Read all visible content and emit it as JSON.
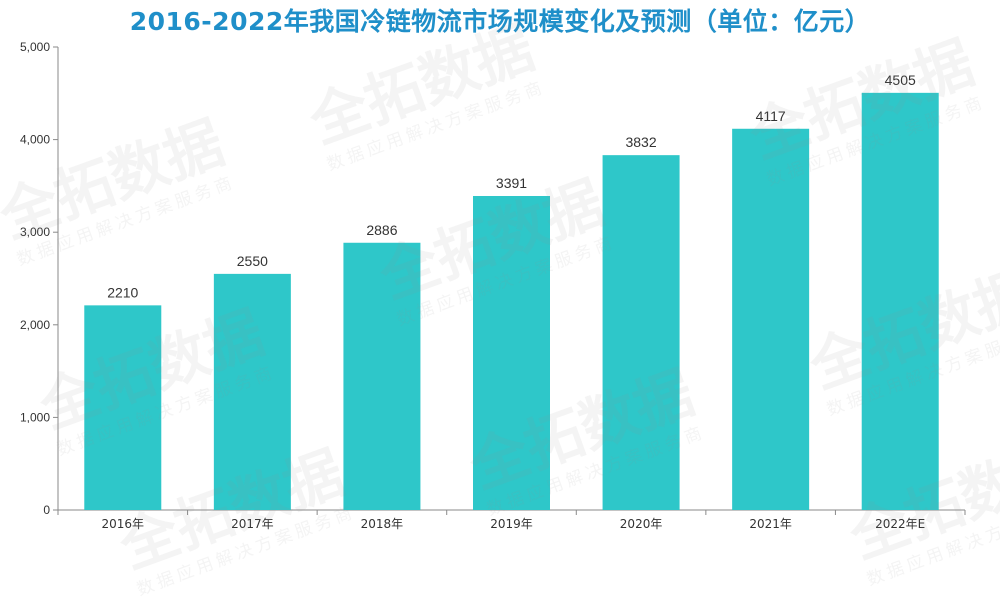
{
  "chart_data": {
    "type": "bar",
    "title": "2016-2022年我国冷链物流市场规模变化及预测（单位：亿元）",
    "categories": [
      "2016年",
      "2017年",
      "2018年",
      "2019年",
      "2020年",
      "2021年",
      "2022年E"
    ],
    "values": [
      2210,
      2550,
      2886,
      3391,
      3832,
      4117,
      4505
    ],
    "data_labels": [
      "2210",
      "2550",
      "2886",
      "3391",
      "3832",
      "4117",
      "4505"
    ],
    "ylim": [
      0,
      5000
    ],
    "yticks": [
      0,
      1000,
      2000,
      3000,
      4000,
      5000
    ],
    "ytick_labels": [
      "0",
      "1,000",
      "2,000",
      "3,000",
      "4,000",
      "5,000"
    ],
    "grid": false,
    "bar_color": "#2ec7c9",
    "title_color": "#1f8fc9"
  },
  "watermark": {
    "brand": "全拓数据",
    "slogan": "数据应用解决方案服务商"
  }
}
